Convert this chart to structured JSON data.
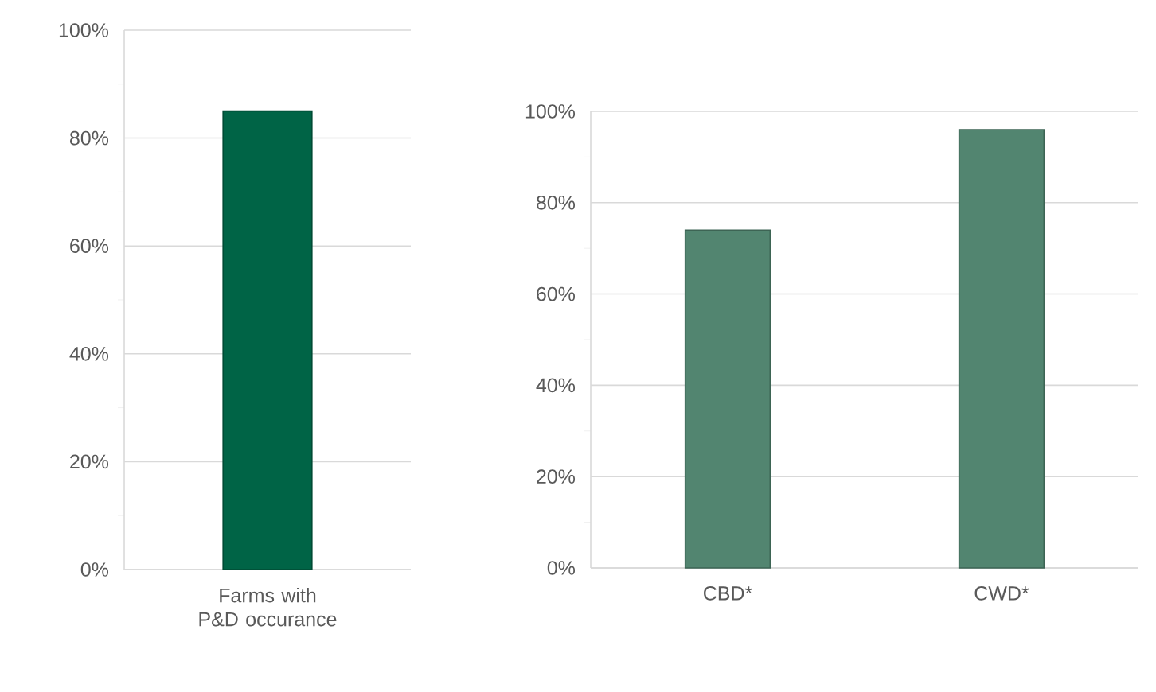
{
  "chart_data": [
    {
      "type": "bar",
      "categories": [
        "Farms with P&D occurance"
      ],
      "values": [
        85
      ],
      "color": "#006446",
      "ylim": [
        0,
        100
      ],
      "yticks": [
        {
          "value": 0,
          "label": "0%"
        },
        {
          "value": 20,
          "label": "20%"
        },
        {
          "value": 40,
          "label": "40%"
        },
        {
          "value": 60,
          "label": "60%"
        },
        {
          "value": 80,
          "label": "80%"
        },
        {
          "value": 100,
          "label": "100%"
        }
      ],
      "grid": "y"
    },
    {
      "type": "bar",
      "categories": [
        "CBD*",
        "CWD*"
      ],
      "values": [
        74,
        96
      ],
      "color": "#528570",
      "ylim": [
        0,
        100
      ],
      "yticks": [
        {
          "value": 0,
          "label": "0%"
        },
        {
          "value": 20,
          "label": "20%"
        },
        {
          "value": 40,
          "label": "40%"
        },
        {
          "value": 60,
          "label": "60%"
        },
        {
          "value": 80,
          "label": "80%"
        },
        {
          "value": 100,
          "label": "100%"
        }
      ],
      "grid": "y"
    }
  ]
}
